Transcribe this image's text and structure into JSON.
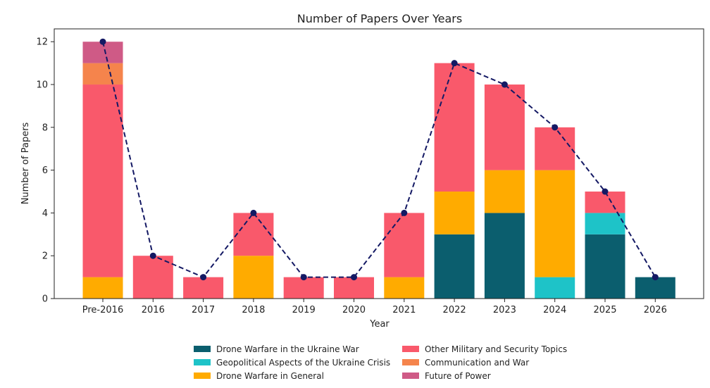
{
  "chart_data": {
    "type": "bar",
    "stacked": true,
    "title": "Number of Papers Over Years",
    "xlabel": "Year",
    "ylabel": "Number of Papers",
    "ylim": [
      0,
      12.6
    ],
    "yticks": [
      0,
      2,
      4,
      6,
      8,
      10,
      12
    ],
    "grid": false,
    "legend_position": "bottom-center",
    "categories": [
      "Pre-2016",
      "2016",
      "2017",
      "2018",
      "2019",
      "2020",
      "2021",
      "2022",
      "2023",
      "2024",
      "2025",
      "2026"
    ],
    "series": [
      {
        "name": "Drone Warfare in the Ukraine War",
        "color": "#0b5e6e",
        "values": [
          0,
          0,
          0,
          0,
          0,
          0,
          0,
          3,
          4,
          0,
          3,
          1
        ]
      },
      {
        "name": "Geopolitical Aspects of the Ukraine Crisis",
        "color": "#1ec3c8",
        "values": [
          0,
          0,
          0,
          0,
          0,
          0,
          0,
          0,
          0,
          1,
          1,
          0
        ]
      },
      {
        "name": "Drone Warfare in General",
        "color": "#ffab00",
        "values": [
          1,
          0,
          0,
          2,
          0,
          0,
          1,
          2,
          2,
          5,
          0,
          0
        ]
      },
      {
        "name": "Other Military and Security Topics",
        "color": "#f9596b",
        "values": [
          9,
          2,
          1,
          2,
          1,
          1,
          3,
          6,
          4,
          2,
          1,
          0
        ]
      },
      {
        "name": "Communication and War",
        "color": "#f5844c",
        "values": [
          1,
          0,
          0,
          0,
          0,
          0,
          0,
          0,
          0,
          0,
          0,
          0
        ]
      },
      {
        "name": "Future of Power",
        "color": "#cf5a86",
        "values": [
          1,
          0,
          0,
          0,
          0,
          0,
          0,
          0,
          0,
          0,
          0,
          0
        ]
      }
    ],
    "totals_line": {
      "style": "dashed",
      "color": "#141964",
      "values": [
        12,
        2,
        1,
        4,
        1,
        1,
        4,
        11,
        10,
        8,
        5,
        1
      ]
    }
  }
}
